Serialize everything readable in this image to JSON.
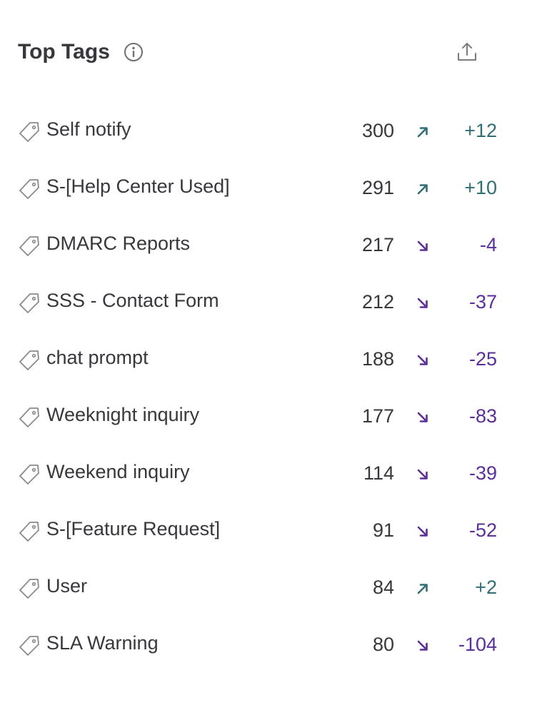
{
  "widget": {
    "title": "Top Tags",
    "info_icon": "info-icon",
    "export_icon": "export-icon"
  },
  "colors": {
    "up": "#2f6f73",
    "down": "#5b2e9e",
    "text": "#37373d",
    "icon": "#8a8a90"
  },
  "tags": [
    {
      "name": "Self notify",
      "count": "300",
      "trend": "up",
      "delta": "+12"
    },
    {
      "name": "S-[Help Center Used]",
      "count": "291",
      "trend": "up",
      "delta": "+10"
    },
    {
      "name": "DMARC Reports",
      "count": "217",
      "trend": "down",
      "delta": "-4"
    },
    {
      "name": "SSS - Contact Form",
      "count": "212",
      "trend": "down",
      "delta": "-37"
    },
    {
      "name": "chat prompt",
      "count": "188",
      "trend": "down",
      "delta": "-25"
    },
    {
      "name": "Weeknight inquiry",
      "count": "177",
      "trend": "down",
      "delta": "-83"
    },
    {
      "name": "Weekend inquiry",
      "count": "114",
      "trend": "down",
      "delta": "-39"
    },
    {
      "name": "S-[Feature Request]",
      "count": "91",
      "trend": "down",
      "delta": "-52"
    },
    {
      "name": "User",
      "count": "84",
      "trend": "up",
      "delta": "+2"
    },
    {
      "name": "SLA Warning",
      "count": "80",
      "trend": "down",
      "delta": "-104"
    }
  ]
}
